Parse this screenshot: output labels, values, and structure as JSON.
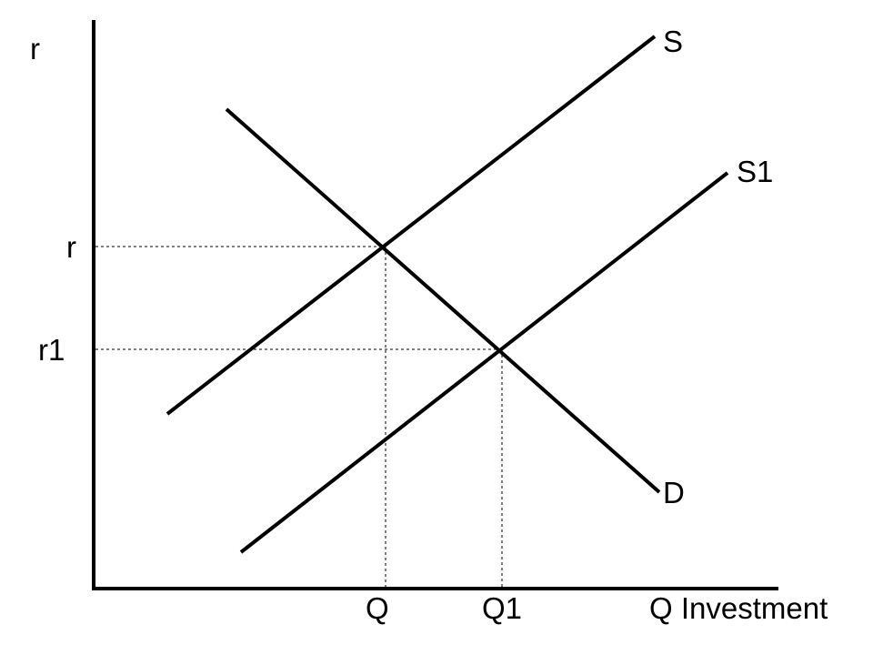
{
  "chart_data": {
    "type": "line",
    "title": "",
    "ylabel": "r",
    "xlabel": "Q Investment",
    "x_ticks": [
      "Q",
      "Q1"
    ],
    "y_ticks": [
      "r",
      "r1"
    ],
    "series": [
      {
        "name": "S",
        "label": "S"
      },
      {
        "name": "S1",
        "label": "S1"
      },
      {
        "name": "D",
        "label": "D"
      }
    ],
    "equilibria": [
      {
        "q": "Q",
        "r": "r"
      },
      {
        "q": "Q1",
        "r": "r1"
      }
    ]
  }
}
